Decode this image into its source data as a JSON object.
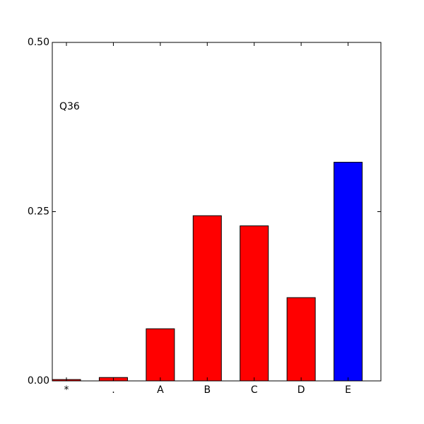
{
  "chart_data": {
    "type": "bar",
    "annotation": "Q36",
    "categories": [
      "*",
      ".",
      "A",
      "B",
      "C",
      "D",
      "E"
    ],
    "values": [
      0.002,
      0.005,
      0.077,
      0.244,
      0.229,
      0.123,
      0.323
    ],
    "colors": [
      "#ff0000",
      "#ff0000",
      "#ff0000",
      "#ff0000",
      "#ff0000",
      "#ff0000",
      "#0000ff"
    ],
    "ylim": [
      0,
      0.5
    ],
    "yticks": [
      {
        "value": 0,
        "label": "0.00"
      },
      {
        "value": 0.25,
        "label": "0.25"
      },
      {
        "value": 0.5,
        "label": "0.50"
      }
    ]
  }
}
